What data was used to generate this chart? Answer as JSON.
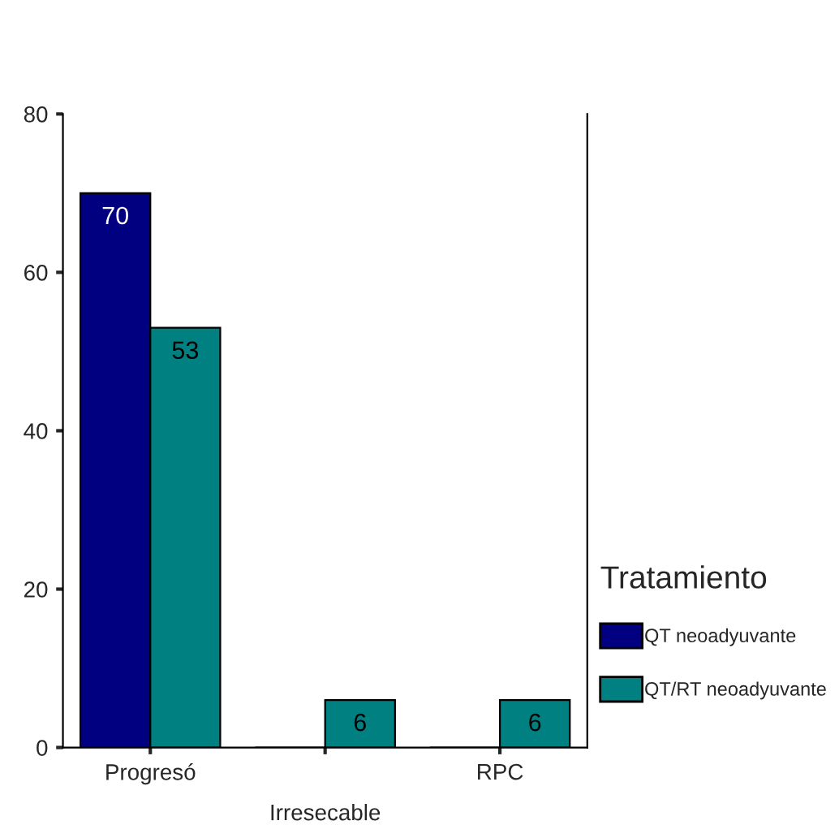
{
  "chart_data": {
    "type": "bar",
    "categories": [
      "Progresó",
      "Irresecable",
      "RPC"
    ],
    "series": [
      {
        "name": "QT neoadyuvante",
        "color": "#000080",
        "values": [
          70,
          0,
          0
        ],
        "value_labels": [
          "70",
          null,
          null
        ]
      },
      {
        "name": "QT/RT neoadyuvante",
        "color": "#008080",
        "values": [
          53,
          6,
          6
        ],
        "value_labels": [
          "53",
          "6",
          "6"
        ]
      }
    ],
    "legend_title": "Tratamiento",
    "legend": "right",
    "ylim": [
      0,
      80
    ],
    "yticks": [
      0,
      20,
      40,
      60,
      80
    ],
    "grid": false
  }
}
